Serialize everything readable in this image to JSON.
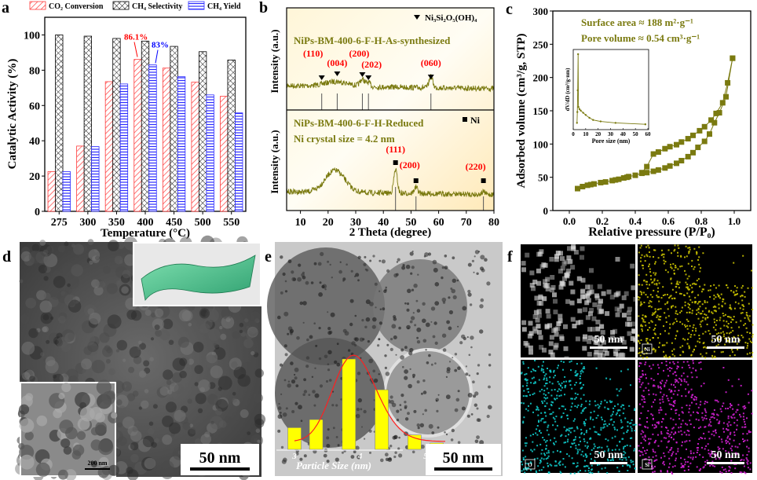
{
  "panel_labels": {
    "a": "a",
    "b": "b",
    "c": "c",
    "d": "d",
    "e": "e",
    "f": "f"
  },
  "chart_data": [
    {
      "id": "a",
      "type": "bar",
      "xlabel": "Temperature (°C)",
      "ylabel": "Catalytic Activity (%)",
      "ylim": [
        0,
        110
      ],
      "yticks": [
        0,
        20,
        40,
        60,
        80,
        100
      ],
      "categories": [
        "275",
        "300",
        "350",
        "400",
        "450",
        "500",
        "550"
      ],
      "legend_position": "top",
      "series": [
        {
          "name": "CO₂ Conversion",
          "color": "#ff3b3b",
          "pattern": "diagonal-hatch",
          "values": [
            22.5,
            37,
            73.5,
            86.1,
            81.2,
            73.2,
            65.2
          ]
        },
        {
          "name": "CH₄ Selectivity",
          "color": "#000000",
          "pattern": "cross-hatch",
          "values": [
            100,
            99.3,
            98,
            96.5,
            93.5,
            90.5,
            85.8
          ]
        },
        {
          "name": "CH₄ Yield",
          "color": "#2b2bff",
          "pattern": "horizontal-lines",
          "values": [
            22.5,
            36.7,
            72.2,
            83,
            76.3,
            66,
            55.8
          ]
        }
      ],
      "annotations": [
        {
          "text": "86.1%",
          "color": "#ff0000",
          "category": "400",
          "series": "CO₂ Conversion"
        },
        {
          "text": "83%",
          "color": "#0000ff",
          "category": "400",
          "series": "CH₄ Yield"
        }
      ]
    },
    {
      "id": "b",
      "type": "line",
      "xlabel": "2 Theta (degree)",
      "ylabel": "Intensity (a.u.)",
      "xlim": [
        5,
        80
      ],
      "xticks": [
        10,
        20,
        30,
        40,
        50,
        60,
        70,
        80
      ],
      "trace_color": "#7a7a10",
      "top": {
        "name": "NiPs-BM-400-6-F-H-As-synthesized",
        "legend": "Ni₃Si₂O₅(OH)₄",
        "legend_marker": "triangle-down",
        "peaks": [
          {
            "pos": 17.7,
            "label": "(110)"
          },
          {
            "pos": 23.3,
            "label": "(004)"
          },
          {
            "pos": 32.4,
            "label": "(200)"
          },
          {
            "pos": 34.6,
            "label": "(202)"
          },
          {
            "pos": 57.2,
            "label": "(060)"
          }
        ]
      },
      "bottom": {
        "name": "NiPs-BM-400-6-F-H-Reduced",
        "note": "Ni crystal size = 4.2 nm",
        "legend": "Ni",
        "legend_marker": "square",
        "peaks": [
          {
            "pos": 44.4,
            "label": "(111)"
          },
          {
            "pos": 51.8,
            "label": "(200)"
          },
          {
            "pos": 76.2,
            "label": "(220)"
          }
        ]
      }
    },
    {
      "id": "c",
      "type": "scatter",
      "xlabel": "Relative pressure (P/P₀)",
      "ylabel": "Adsorbed volume (cm³/g, STP)",
      "xlim": [
        -0.1,
        1.1
      ],
      "ylim": [
        0,
        300
      ],
      "xticks": [
        "0.0",
        "0.2",
        "0.4",
        "0.6",
        "0.8",
        "1.0"
      ],
      "yticks": [
        0,
        50,
        100,
        150,
        200,
        250,
        300
      ],
      "color": "#7a7a10",
      "annotations": [
        "Surface area ≈ 188 m²·g⁻¹",
        "Pore volume ≈  0.54 cm³·g⁻¹"
      ],
      "series": [
        {
          "x": [
            0.05,
            0.08,
            0.11,
            0.13,
            0.15,
            0.19,
            0.22,
            0.26,
            0.28,
            0.3,
            0.33,
            0.35,
            0.36,
            0.4,
            0.44,
            0.47,
            0.51,
            0.54,
            0.58,
            0.61,
            0.65,
            0.68,
            0.72,
            0.75,
            0.78,
            0.82,
            0.85,
            0.88,
            0.91,
            0.95,
            0.99
          ],
          "y": [
            33,
            36,
            38,
            39,
            40,
            42,
            43,
            45,
            46,
            47,
            49,
            50,
            51,
            53,
            56,
            57,
            59,
            61,
            64,
            67,
            71,
            75,
            81,
            87,
            95,
            104,
            115,
            132,
            147,
            171,
            229
          ]
        },
        {
          "x": [
            0.99,
            0.96,
            0.93,
            0.89,
            0.86,
            0.82,
            0.79,
            0.75,
            0.72,
            0.68,
            0.65,
            0.61,
            0.58,
            0.54,
            0.51,
            0.47,
            0.44
          ],
          "y": [
            229,
            192,
            162,
            146,
            136,
            126,
            120,
            113,
            108,
            103,
            99,
            96,
            93,
            88,
            85,
            66,
            57
          ]
        }
      ],
      "inset": {
        "type": "line",
        "xlabel": "Pore size (nm)",
        "ylabel": "dV/dD (cm³/g·nm)",
        "xlim": [
          0,
          60
        ],
        "xticks": [
          "0",
          "10",
          "20",
          "30",
          "40",
          "50",
          "60"
        ],
        "x": [
          3.0,
          3.3,
          3.6,
          3.9,
          4.2,
          5,
          6,
          8,
          10,
          13,
          16,
          22,
          34,
          58
        ],
        "y": [
          0.05,
          0.2,
          0.5,
          1.0,
          0.27,
          0.24,
          0.22,
          0.19,
          0.16,
          0.12,
          0.09,
          0.07,
          0.05,
          0.03
        ]
      }
    },
    {
      "id": "e-hist",
      "type": "bar",
      "xlabel": "Particle Size (nm)",
      "xticks": [
        "3",
        "4",
        "5"
      ],
      "bar_centers": [
        3.0,
        3.33,
        3.83,
        4.33,
        4.83,
        5.17
      ],
      "relative_frequency": [
        0.24,
        0.33,
        1.0,
        0.66,
        0.16,
        0.07
      ],
      "bar_color": "#ffff00",
      "fit_color": "#ff2020"
    }
  ],
  "images": {
    "d": {
      "scale_bar": "50 nm",
      "inset_scale_bar": "200 nm"
    },
    "e": {
      "scale_bar": "50 nm"
    },
    "f": [
      {
        "label": "",
        "scale_bar": "50 nm",
        "color": "#dddddd"
      },
      {
        "label": "Ni",
        "scale_bar": "50 nm",
        "color": "#c8c000"
      },
      {
        "label": "O",
        "scale_bar": "50 nm",
        "color": "#10c8c8"
      },
      {
        "label": "Si",
        "scale_bar": "50 nm",
        "color": "#d020d0"
      }
    ]
  }
}
